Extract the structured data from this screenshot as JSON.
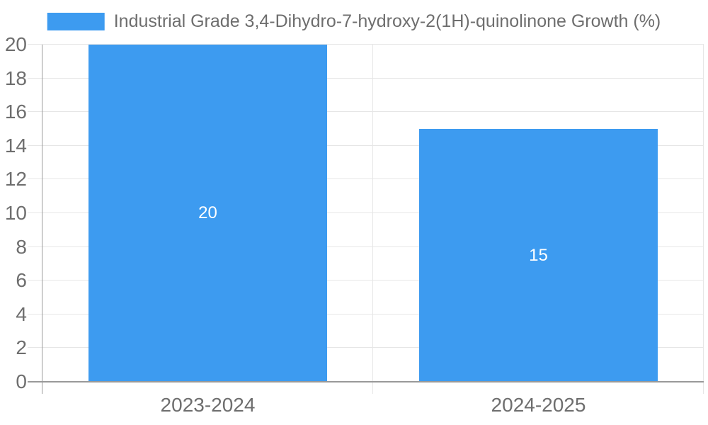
{
  "legend": {
    "label": "Industrial Grade 3,4-Dihydro-7-hydroxy-2(1H)-quinolinone Growth (%)"
  },
  "chart_data": {
    "type": "bar",
    "title": "",
    "categories": [
      "2023-2024",
      "2024-2025"
    ],
    "series": [
      {
        "name": "Industrial Grade 3,4-Dihydro-7-hydroxy-2(1H)-quinolinone Growth (%)",
        "values": [
          20,
          15
        ]
      }
    ],
    "value_labels": [
      "20",
      "15"
    ],
    "xlabel": "",
    "ylabel": "",
    "ylim": [
      0,
      20
    ],
    "ytick_step": 2,
    "ytick_labels": [
      "0",
      "2",
      "4",
      "6",
      "8",
      "10",
      "12",
      "14",
      "16",
      "18",
      "20"
    ],
    "grid": true,
    "legend_position": "top",
    "colors": {
      "bar": "#3D9BF0",
      "gridline": "#E6E6E6",
      "axis": "#999999",
      "tick_label": "#6E6E6E",
      "value_label": "#FFFFFF"
    }
  }
}
